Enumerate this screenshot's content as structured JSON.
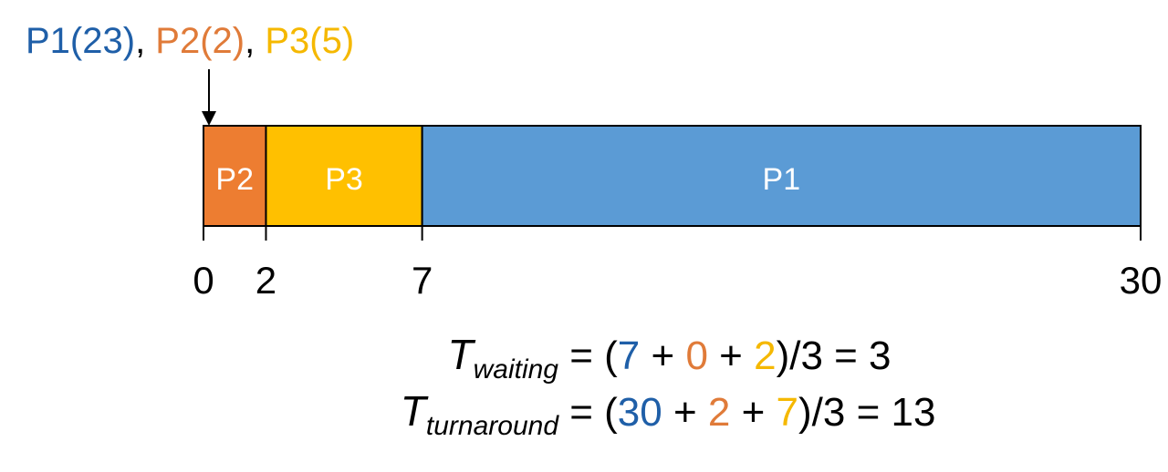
{
  "chart_data": {
    "type": "gantt",
    "title_parts": [
      {
        "text": "P1(23)",
        "color": "#1f5fa8"
      },
      {
        "text": ", ",
        "color": "#000000"
      },
      {
        "text": "P2(2)",
        "color": "#e07b39"
      },
      {
        "text": ", ",
        "color": "#000000"
      },
      {
        "text": "P3(5)",
        "color": "#f5b800"
      }
    ],
    "segments": [
      {
        "name": "P2",
        "start": 0,
        "end": 2,
        "color": "#ed7d31"
      },
      {
        "name": "P3",
        "start": 2,
        "end": 7,
        "color": "#ffc000"
      },
      {
        "name": "P1",
        "start": 7,
        "end": 30,
        "color": "#5b9bd5"
      }
    ],
    "xlim": [
      0,
      30
    ],
    "xticks": [
      0,
      2,
      7,
      30
    ],
    "formulas": [
      {
        "symbol": "T",
        "subscript": "waiting",
        "parts": [
          {
            "text": " = (",
            "color": "#000000"
          },
          {
            "text": "7",
            "color": "#1f5fa8"
          },
          {
            "text": " + ",
            "color": "#000000"
          },
          {
            "text": "0",
            "color": "#e07b39"
          },
          {
            "text": " + ",
            "color": "#000000"
          },
          {
            "text": "2",
            "color": "#f5b800"
          },
          {
            "text": ")/3 = 3",
            "color": "#000000"
          }
        ]
      },
      {
        "symbol": "T",
        "subscript": "turnaround",
        "parts": [
          {
            "text": " = (",
            "color": "#000000"
          },
          {
            "text": "30",
            "color": "#1f5fa8"
          },
          {
            "text": " + ",
            "color": "#000000"
          },
          {
            "text": "2",
            "color": "#e07b39"
          },
          {
            "text": " + ",
            "color": "#000000"
          },
          {
            "text": "7",
            "color": "#f5b800"
          },
          {
            "text": ")/3 = 13",
            "color": "#000000"
          }
        ]
      }
    ]
  }
}
